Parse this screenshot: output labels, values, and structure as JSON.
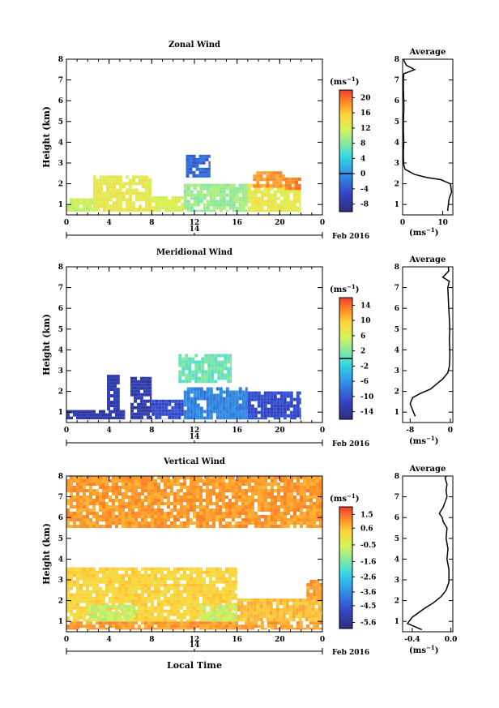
{
  "figure": {
    "xlabel": "Local Time",
    "date_label": "Feb 2016",
    "day_label": "14",
    "panel_ylabel": "Height (km)",
    "colorbar_unit": "(ms",
    "colorbar_unit_exp": "−1",
    "avg_unit": "(ms",
    "avg_unit_exp": "−1"
  },
  "chart_data": [
    {
      "type": "heatmap",
      "title": "Zonal Wind",
      "xlabel": "",
      "ylabel": "Height (km)",
      "xlim": [
        0,
        24
      ],
      "ylim": [
        0.5,
        8
      ],
      "xticks": [
        "0",
        "4",
        "8",
        "12",
        "16",
        "20",
        "0"
      ],
      "yticks": [
        "1",
        "2",
        "3",
        "4",
        "5",
        "6",
        "7",
        "8"
      ],
      "colorbar": {
        "unit": "ms-1",
        "range": [
          -10,
          22
        ],
        "ticks": [
          "20",
          "16",
          "12",
          "8",
          "4",
          "0",
          "-4",
          "-8"
        ],
        "contour_at": 0
      },
      "regions": [
        {
          "x0": 0.0,
          "x1": 2.5,
          "y0": 0.65,
          "y1": 1.3,
          "value": 11
        },
        {
          "x0": 2.5,
          "x1": 8.0,
          "y0": 0.65,
          "y1": 2.4,
          "value": 13
        },
        {
          "x0": 8.0,
          "x1": 11.0,
          "y0": 0.65,
          "y1": 1.4,
          "value": 12
        },
        {
          "x0": 11.0,
          "x1": 17.0,
          "y0": 0.65,
          "y1": 2.0,
          "value": 9
        },
        {
          "x0": 17.0,
          "x1": 22.0,
          "y0": 0.65,
          "y1": 2.0,
          "value": 13
        },
        {
          "x0": 17.5,
          "x1": 20.5,
          "y0": 1.8,
          "y1": 2.6,
          "value": 18
        },
        {
          "x0": 20.5,
          "x1": 22.0,
          "y0": 1.7,
          "y1": 2.3,
          "value": 19
        },
        {
          "x0": 11.2,
          "x1": 13.5,
          "y0": 2.3,
          "y1": 3.4,
          "value": -3
        }
      ],
      "average_profile": {
        "title": "Average",
        "xlim": [
          0,
          12.5
        ],
        "ylim": [
          0.5,
          8
        ],
        "xticks": [
          "0",
          "10"
        ],
        "x_values": [
          11.2,
          11.4,
          11.6,
          12.2,
          11.9,
          9.5,
          6.0,
          3.0,
          0.6,
          0.3,
          0.2,
          0.2,
          0.3,
          0.2,
          0.2,
          0.3,
          0.3,
          0.2,
          0.2,
          0.3,
          3.0,
          1.0,
          0.4,
          0.3
        ],
        "y_values": [
          0.7,
          1.0,
          1.3,
          1.6,
          2.0,
          2.2,
          2.3,
          2.45,
          2.7,
          2.9,
          3.2,
          3.6,
          4.0,
          4.5,
          5.0,
          5.5,
          6.0,
          6.5,
          7.0,
          7.3,
          7.5,
          7.7,
          7.9,
          8.0
        ]
      }
    },
    {
      "type": "heatmap",
      "title": "Meridional Wind",
      "xlabel": "",
      "ylabel": "Height (km)",
      "xlim": [
        0,
        24
      ],
      "ylim": [
        0.5,
        8
      ],
      "xticks": [
        "0",
        "4",
        "8",
        "12",
        "16",
        "20",
        "0"
      ],
      "yticks": [
        "1",
        "2",
        "3",
        "4",
        "5",
        "6",
        "7",
        "8"
      ],
      "colorbar": {
        "unit": "ms-1",
        "range": [
          -16,
          16
        ],
        "ticks": [
          "14",
          "10",
          "6",
          "2",
          "-2",
          "-6",
          "-10",
          "-14"
        ],
        "contour_at": 0
      },
      "regions": [
        {
          "x0": 0.0,
          "x1": 5.5,
          "y0": 0.65,
          "y1": 1.1,
          "value": -13
        },
        {
          "x0": 3.8,
          "x1": 5.0,
          "y0": 1.0,
          "y1": 2.8,
          "value": -13
        },
        {
          "x0": 6.0,
          "x1": 8.0,
          "y0": 0.65,
          "y1": 2.7,
          "value": -13
        },
        {
          "x0": 8.0,
          "x1": 11.0,
          "y0": 0.65,
          "y1": 1.6,
          "value": -11
        },
        {
          "x0": 11.0,
          "x1": 17.0,
          "y0": 0.65,
          "y1": 2.2,
          "value": -7
        },
        {
          "x0": 17.0,
          "x1": 22.0,
          "y0": 0.65,
          "y1": 2.0,
          "value": -11
        },
        {
          "x0": 10.5,
          "x1": 15.5,
          "y0": 2.4,
          "y1": 3.8,
          "value": 1
        }
      ],
      "average_profile": {
        "title": "Average",
        "xlim": [
          -9.5,
          0.5
        ],
        "ylim": [
          0.5,
          8
        ],
        "xticks": [
          "-8",
          "0"
        ],
        "x_values": [
          -7.0,
          -7.5,
          -8.0,
          -7.5,
          -6.0,
          -4.0,
          -3.0,
          -1.5,
          -0.5,
          -0.2,
          -0.1,
          -0.1,
          -0.2,
          -0.1,
          -0.2,
          -0.3,
          -0.4,
          -0.5,
          -0.2,
          -1.5,
          -0.3,
          -0.4
        ],
        "y_values": [
          0.8,
          1.1,
          1.4,
          1.7,
          1.9,
          2.1,
          2.3,
          2.6,
          2.9,
          3.2,
          3.6,
          4.0,
          4.5,
          5.0,
          5.5,
          6.0,
          6.5,
          7.0,
          7.3,
          7.5,
          7.8,
          8.0
        ]
      }
    },
    {
      "type": "heatmap",
      "title": "Vertical Wind",
      "xlabel": "Local Time",
      "ylabel": "Height (km)",
      "xlim": [
        0,
        24
      ],
      "ylim": [
        0.5,
        8
      ],
      "xticks": [
        "0",
        "4",
        "8",
        "12",
        "16",
        "20",
        "0"
      ],
      "yticks": [
        "1",
        "2",
        "3",
        "4",
        "5",
        "6",
        "7",
        "8"
      ],
      "colorbar": {
        "unit": "ms-1",
        "range": [
          -6.0,
          2.0
        ],
        "ticks": [
          "1.5",
          "0.6",
          "-0.5",
          "-1.6",
          "-2.6",
          "-3.6",
          "-4.5",
          "-5.6"
        ],
        "contour_at": null
      },
      "regions": [
        {
          "x0": 0.0,
          "x1": 24.0,
          "y0": 0.6,
          "y1": 1.0,
          "value": 1.0
        },
        {
          "x0": 0.0,
          "x1": 16.0,
          "y0": 1.0,
          "y1": 3.6,
          "value": 0.3
        },
        {
          "x0": 16.0,
          "x1": 24.0,
          "y0": 1.0,
          "y1": 2.1,
          "value": 0.6
        },
        {
          "x0": 2.0,
          "x1": 6.5,
          "y0": 1.0,
          "y1": 1.8,
          "value": -0.8
        },
        {
          "x0": 12.5,
          "x1": 16.0,
          "y0": 1.0,
          "y1": 1.8,
          "value": -0.8
        },
        {
          "x0": 0.0,
          "x1": 24.0,
          "y0": 5.5,
          "y1": 8.0,
          "value": 1.0
        },
        {
          "x0": 22.5,
          "x1": 24.0,
          "y0": 2.0,
          "y1": 3.0,
          "value": 1.0
        }
      ],
      "average_profile": {
        "title": "Average",
        "xlim": [
          -0.5,
          0.02
        ],
        "ylim": [
          0.5,
          8
        ],
        "xticks": [
          "-0.4",
          "0.0"
        ],
        "x_values": [
          -0.3,
          -0.45,
          -0.4,
          -0.28,
          -0.18,
          -0.1,
          -0.05,
          -0.02,
          -0.02,
          -0.04,
          -0.03,
          -0.05,
          -0.04,
          -0.08,
          -0.09,
          -0.12,
          -0.08,
          -0.04,
          -0.05,
          -0.04,
          -0.06,
          -0.05
        ],
        "y_values": [
          0.6,
          0.9,
          1.2,
          1.6,
          1.9,
          2.2,
          2.5,
          2.9,
          3.5,
          4.0,
          4.5,
          5.0,
          5.5,
          5.8,
          6.0,
          6.2,
          6.5,
          7.0,
          7.3,
          7.6,
          7.9,
          8.0
        ]
      }
    }
  ]
}
